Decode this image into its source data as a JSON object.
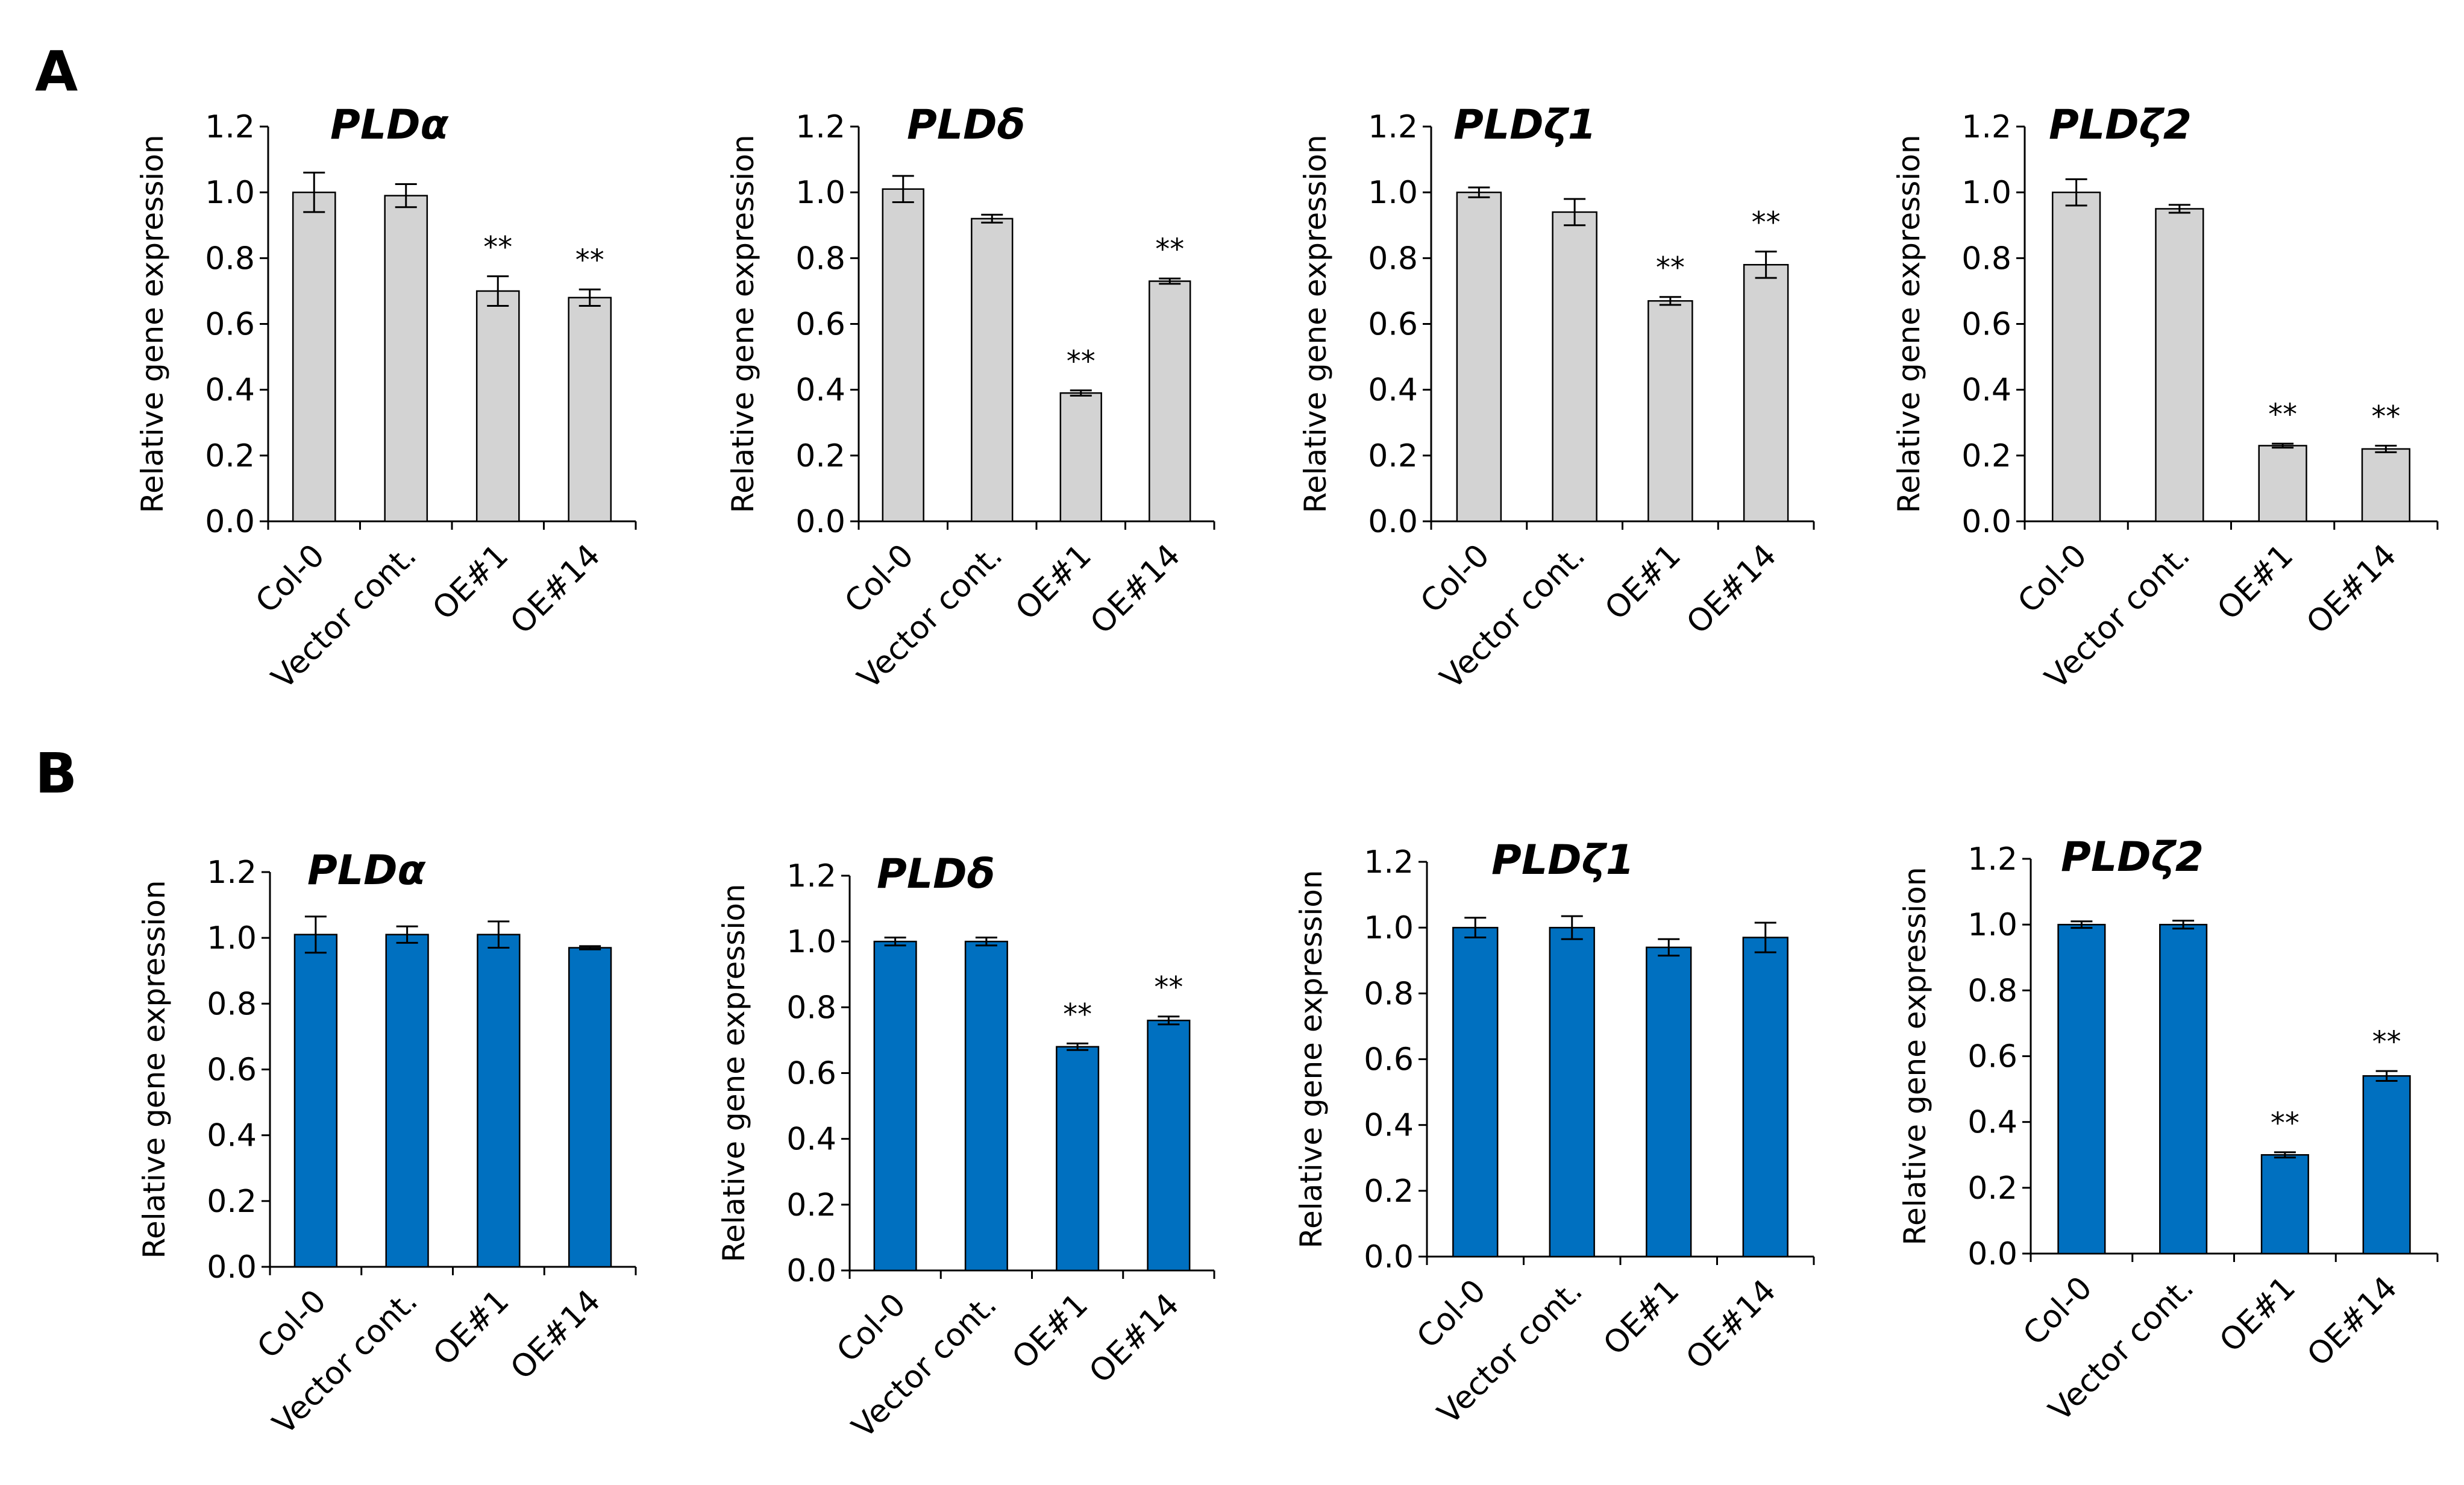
{
  "panels": [
    {
      "letter": "A"
    },
    {
      "letter": "B"
    }
  ],
  "chart_data": [
    {
      "type": "bar",
      "panel": "A",
      "title": "PLDα",
      "categories": [
        "Col-0",
        "Vector cont.",
        "OE#1",
        "OE#14"
      ],
      "values": [
        1.0,
        0.99,
        0.7,
        0.68
      ],
      "errors": [
        0.06,
        0.035,
        0.045,
        0.025
      ],
      "significance": [
        "",
        "",
        "**",
        "**"
      ],
      "ylabel": "Relative gene expression",
      "ylim": [
        0,
        1.2
      ],
      "yticks": [
        "0.0",
        "0.2",
        "0.4",
        "0.6",
        "0.8",
        "1.0",
        "1.2"
      ],
      "bar_color": "#d3d3d3"
    },
    {
      "type": "bar",
      "panel": "A",
      "title": "PLDδ",
      "categories": [
        "Col-0",
        "Vector cont.",
        "OE#1",
        "OE#14"
      ],
      "values": [
        1.01,
        0.92,
        0.39,
        0.73
      ],
      "errors": [
        0.04,
        0.012,
        0.008,
        0.008
      ],
      "significance": [
        "",
        "",
        "**",
        "**"
      ],
      "ylabel": "Relative gene expression",
      "ylim": [
        0,
        1.2
      ],
      "yticks": [
        "0.0",
        "0.2",
        "0.4",
        "0.6",
        "0.8",
        "1.0",
        "1.2"
      ],
      "bar_color": "#d3d3d3"
    },
    {
      "type": "bar",
      "panel": "A",
      "title": "PLDζ1",
      "categories": [
        "Col-0",
        "Vector cont.",
        "OE#1",
        "OE#14"
      ],
      "values": [
        1.0,
        0.94,
        0.67,
        0.78
      ],
      "errors": [
        0.015,
        0.04,
        0.012,
        0.04
      ],
      "significance": [
        "",
        "",
        "**",
        "**"
      ],
      "ylabel": "Relative gene expression",
      "ylim": [
        0,
        1.2
      ],
      "yticks": [
        "0.0",
        "0.2",
        "0.4",
        "0.6",
        "0.8",
        "1.0",
        "1.2"
      ],
      "bar_color": "#d3d3d3"
    },
    {
      "type": "bar",
      "panel": "A",
      "title": "PLDζ2",
      "categories": [
        "Col-0",
        "Vector cont.",
        "OE#1",
        "OE#14"
      ],
      "values": [
        1.0,
        0.95,
        0.23,
        0.22
      ],
      "errors": [
        0.04,
        0.012,
        0.006,
        0.01
      ],
      "significance": [
        "",
        "",
        "**",
        "**"
      ],
      "ylabel": "Relative gene expression",
      "ylim": [
        0,
        1.2
      ],
      "yticks": [
        "0.0",
        "0.2",
        "0.4",
        "0.6",
        "0.8",
        "1.0",
        "1.2"
      ],
      "bar_color": "#d3d3d3"
    },
    {
      "type": "bar",
      "panel": "B",
      "title": "PLDα",
      "categories": [
        "Col-0",
        "Vector cont.",
        "OE#1",
        "OE#14"
      ],
      "values": [
        1.01,
        1.01,
        1.01,
        0.97
      ],
      "errors": [
        0.055,
        0.025,
        0.04,
        0.005
      ],
      "significance": [
        "",
        "",
        "",
        ""
      ],
      "ylabel": "Relative gene expression",
      "ylim": [
        0,
        1.2
      ],
      "yticks": [
        "0.0",
        "0.2",
        "0.4",
        "0.6",
        "0.8",
        "1.0",
        "1.2"
      ],
      "bar_color": "#0070c0"
    },
    {
      "type": "bar",
      "panel": "B",
      "title": "PLDδ",
      "categories": [
        "Col-0",
        "Vector cont.",
        "OE#1",
        "OE#14"
      ],
      "values": [
        1.0,
        1.0,
        0.68,
        0.76
      ],
      "errors": [
        0.012,
        0.012,
        0.01,
        0.012
      ],
      "significance": [
        "",
        "",
        "**",
        "**"
      ],
      "ylabel": "Relative gene expression",
      "ylim": [
        0,
        1.2
      ],
      "yticks": [
        "0.0",
        "0.2",
        "0.4",
        "0.6",
        "0.8",
        "1.0",
        "1.2"
      ],
      "bar_color": "#0070c0"
    },
    {
      "type": "bar",
      "panel": "B",
      "title": "PLDζ1",
      "categories": [
        "Col-0",
        "Vector cont.",
        "OE#1",
        "OE#14"
      ],
      "values": [
        1.0,
        1.0,
        0.94,
        0.97
      ],
      "errors": [
        0.03,
        0.035,
        0.025,
        0.045
      ],
      "significance": [
        "",
        "",
        "",
        ""
      ],
      "ylabel": "Relative gene expression",
      "ylim": [
        0,
        1.2
      ],
      "yticks": [
        "0.0",
        "0.2",
        "0.4",
        "0.6",
        "0.8",
        "1.0",
        "1.2"
      ],
      "bar_color": "#0070c0"
    },
    {
      "type": "bar",
      "panel": "B",
      "title": "PLDζ2",
      "categories": [
        "Col-0",
        "Vector cont.",
        "OE#1",
        "OE#14"
      ],
      "values": [
        1.0,
        1.0,
        0.3,
        0.54
      ],
      "errors": [
        0.01,
        0.012,
        0.008,
        0.015
      ],
      "significance": [
        "",
        "",
        "**",
        "**"
      ],
      "ylabel": "Relative gene expression",
      "ylim": [
        0,
        1.2
      ],
      "yticks": [
        "0.0",
        "0.2",
        "0.4",
        "0.6",
        "0.8",
        "1.0",
        "1.2"
      ],
      "bar_color": "#0070c0"
    }
  ]
}
